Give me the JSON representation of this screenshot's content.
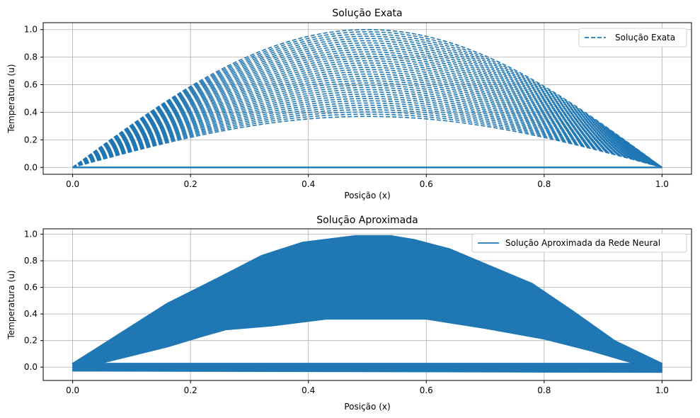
{
  "chart_data": [
    {
      "type": "line",
      "title": "Solução Exata",
      "xlabel": "Posição (x)",
      "ylabel": "Temperatura (u)",
      "xlim": [
        -0.05,
        1.05
      ],
      "ylim": [
        -0.05,
        1.05
      ],
      "xticks": [
        "0.0",
        "0.2",
        "0.4",
        "0.6",
        "0.8",
        "1.0"
      ],
      "yticks": [
        "0.0",
        "0.2",
        "0.4",
        "0.6",
        "0.8",
        "1.0"
      ],
      "grid": true,
      "legend_position": "top-right",
      "series": [
        {
          "name": "Solução Exata",
          "style": "dashed",
          "color": "#1f77b4",
          "curve": "sin(pi*x)",
          "x_range": [
            0,
            1
          ],
          "amplitude_max": 1.0,
          "amplitude_min": 0.37,
          "baseline_y": 0.0
        }
      ]
    },
    {
      "type": "line",
      "title": "Solução Aproximada",
      "xlabel": "Posição (x)",
      "ylabel": "Temperatura (u)",
      "xlim": [
        -0.05,
        1.05
      ],
      "ylim": [
        -0.1,
        1.04
      ],
      "xticks": [
        "0.0",
        "0.2",
        "0.4",
        "0.6",
        "0.8",
        "1.0"
      ],
      "yticks": [
        "0.0",
        "0.2",
        "0.4",
        "0.6",
        "0.8",
        "1.0"
      ],
      "grid": true,
      "legend_position": "top-right",
      "series": [
        {
          "name": "Solução Aproximada da Rede Neural",
          "style": "solid",
          "color": "#1f77b4",
          "upper_envelope": {
            "x": [
              0.0,
              0.05,
              0.16,
              0.25,
              0.32,
              0.39,
              0.48,
              0.54,
              0.58,
              0.64,
              0.71,
              0.78,
              0.85,
              0.92,
              1.0
            ],
            "y": [
              0.03,
              0.17,
              0.48,
              0.68,
              0.84,
              0.94,
              0.99,
              0.99,
              0.96,
              0.89,
              0.76,
              0.63,
              0.42,
              0.2,
              0.03
            ]
          },
          "lower_envelope": {
            "x": [
              0.05,
              0.16,
              0.22,
              0.26,
              0.34,
              0.43,
              0.6,
              0.7,
              0.8,
              0.88,
              0.95
            ],
            "y": [
              0.03,
              0.15,
              0.23,
              0.28,
              0.31,
              0.36,
              0.36,
              0.29,
              0.21,
              0.12,
              0.03
            ]
          },
          "baseline_band": {
            "x": [
              0.0,
              1.0
            ],
            "top": [
              0.03,
              0.03
            ],
            "bottom": [
              -0.03,
              -0.04
            ]
          }
        }
      ]
    }
  ]
}
